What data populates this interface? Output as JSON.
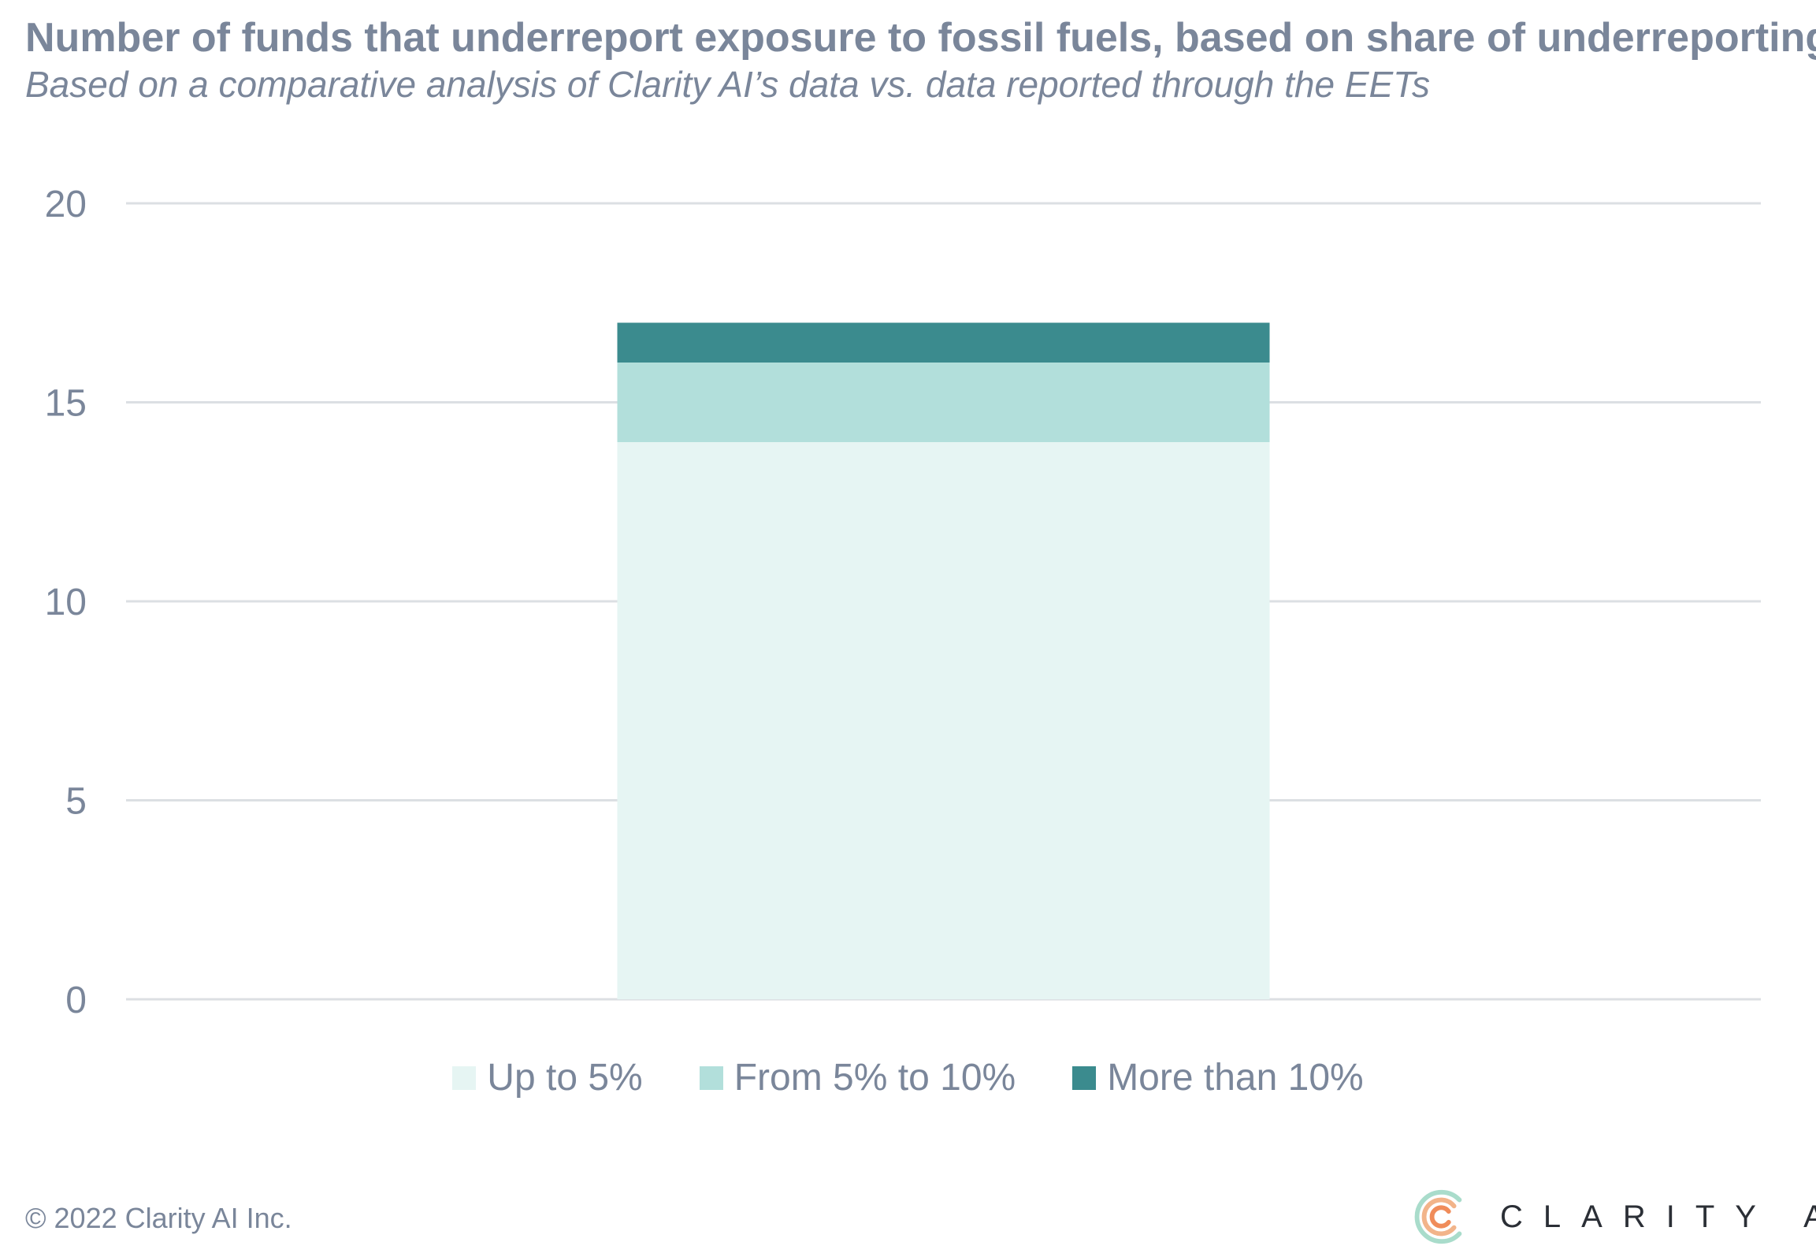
{
  "header": {
    "title": "Number of funds that underreport exposure to fossil fuels, based on share of underreporting",
    "subtitle": "Based on a comparative analysis of Clarity AI’s data vs. data reported through the EETs"
  },
  "footer": {
    "copyright": "© 2022 Clarity AI Inc.",
    "brand_name": "CLARITY AI",
    "brand_icon": "clarity-ai-logo-icon"
  },
  "colors": {
    "up_to_5": "#e6f5f3",
    "from_5_to_10": "#b2dfdb",
    "more_than_10": "#3b8b8e",
    "grid": "#dcdfe3",
    "text": "#7a869a"
  },
  "chart_data": {
    "type": "bar",
    "stacked": true,
    "categories": [
      ""
    ],
    "series": [
      {
        "name": "Up to 5%",
        "values": [
          14
        ]
      },
      {
        "name": "From 5% to 10%",
        "values": [
          2
        ]
      },
      {
        "name": "More than 10%",
        "values": [
          1
        ]
      }
    ],
    "title": "Number of funds that underreport exposure to fossil fuels, based on share of underreporting",
    "subtitle": "Based on a comparative analysis of Clarity AI’s data vs. data reported through the EETs",
    "xlabel": "",
    "ylabel": "",
    "ylim": [
      0,
      20
    ],
    "yticks": [
      "0",
      "5",
      "10",
      "15",
      "20"
    ],
    "grid": true,
    "legend": "bottom"
  }
}
